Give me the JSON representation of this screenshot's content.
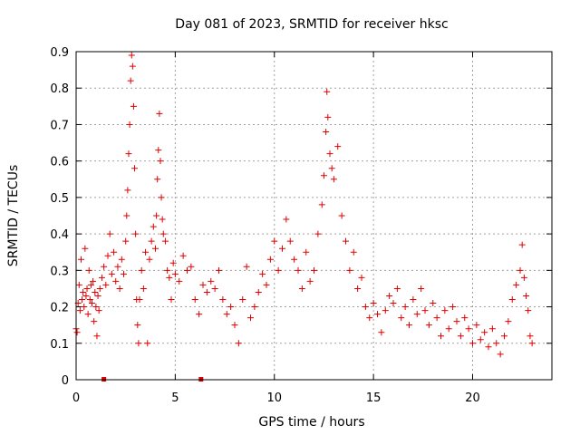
{
  "chart_data": {
    "type": "scatter",
    "title": "Day 081 of 2023, SRMTID for receiver hksc",
    "xlabel": "GPS time / hours",
    "ylabel": "SRMTID / TECUs",
    "xlim": [
      0,
      24.0
    ],
    "ylim": [
      0,
      0.9
    ],
    "x_ticks": [
      0,
      5,
      10,
      15,
      20
    ],
    "x_tick_labels": [
      "0",
      "5",
      "10",
      "15",
      "20"
    ],
    "y_ticks": [
      0,
      0.1,
      0.2,
      0.3,
      0.4,
      0.5,
      0.6,
      0.7,
      0.8,
      0.9
    ],
    "y_tick_labels": [
      "0",
      "0.1",
      "0.2",
      "0.3",
      "0.4",
      "0.5",
      "0.6",
      "0.7",
      "0.8",
      "0.9"
    ],
    "grid": true,
    "marker": "+",
    "color": "#e00000",
    "series": [
      {
        "name": "SRMTID",
        "points": [
          [
            0.0,
            0.14
          ],
          [
            0.05,
            0.13
          ],
          [
            0.1,
            0.21
          ],
          [
            0.15,
            0.26
          ],
          [
            0.2,
            0.19
          ],
          [
            0.25,
            0.33
          ],
          [
            0.3,
            0.22
          ],
          [
            0.35,
            0.24
          ],
          [
            0.4,
            0.2
          ],
          [
            0.45,
            0.36
          ],
          [
            0.5,
            0.23
          ],
          [
            0.55,
            0.25
          ],
          [
            0.6,
            0.18
          ],
          [
            0.65,
            0.3
          ],
          [
            0.7,
            0.22
          ],
          [
            0.75,
            0.26
          ],
          [
            0.8,
            0.21
          ],
          [
            0.85,
            0.27
          ],
          [
            0.9,
            0.16
          ],
          [
            0.95,
            0.24
          ],
          [
            1.0,
            0.2
          ],
          [
            1.05,
            0.12
          ],
          [
            1.1,
            0.23
          ],
          [
            1.15,
            0.19
          ],
          [
            1.2,
            0.25
          ],
          [
            1.3,
            0.28
          ],
          [
            1.4,
            0.31
          ],
          [
            1.5,
            0.26
          ],
          [
            1.6,
            0.34
          ],
          [
            1.7,
            0.4
          ],
          [
            1.8,
            0.29
          ],
          [
            1.9,
            0.35
          ],
          [
            2.0,
            0.27
          ],
          [
            2.1,
            0.31
          ],
          [
            2.2,
            0.25
          ],
          [
            2.3,
            0.33
          ],
          [
            2.4,
            0.29
          ],
          [
            2.5,
            0.38
          ],
          [
            2.55,
            0.45
          ],
          [
            2.6,
            0.52
          ],
          [
            2.65,
            0.62
          ],
          [
            2.7,
            0.7
          ],
          [
            2.75,
            0.82
          ],
          [
            2.8,
            0.89
          ],
          [
            2.85,
            0.86
          ],
          [
            2.9,
            0.75
          ],
          [
            2.95,
            0.58
          ],
          [
            3.0,
            0.4
          ],
          [
            3.05,
            0.22
          ],
          [
            3.1,
            0.15
          ],
          [
            3.15,
            0.1
          ],
          [
            3.2,
            0.22
          ],
          [
            3.3,
            0.3
          ],
          [
            3.4,
            0.25
          ],
          [
            3.5,
            0.35
          ],
          [
            3.6,
            0.1
          ],
          [
            3.7,
            0.33
          ],
          [
            3.8,
            0.38
          ],
          [
            3.9,
            0.42
          ],
          [
            4.0,
            0.36
          ],
          [
            4.05,
            0.45
          ],
          [
            4.1,
            0.55
          ],
          [
            4.15,
            0.63
          ],
          [
            4.2,
            0.73
          ],
          [
            4.25,
            0.6
          ],
          [
            4.3,
            0.5
          ],
          [
            4.35,
            0.44
          ],
          [
            4.4,
            0.4
          ],
          [
            4.5,
            0.38
          ],
          [
            4.6,
            0.3
          ],
          [
            4.7,
            0.28
          ],
          [
            4.8,
            0.22
          ],
          [
            4.9,
            0.32
          ],
          [
            5.0,
            0.29
          ],
          [
            5.2,
            0.27
          ],
          [
            5.4,
            0.34
          ],
          [
            5.6,
            0.3
          ],
          [
            5.8,
            0.31
          ],
          [
            6.0,
            0.22
          ],
          [
            6.2,
            0.18
          ],
          [
            6.4,
            0.26
          ],
          [
            6.6,
            0.24
          ],
          [
            6.8,
            0.27
          ],
          [
            7.0,
            0.25
          ],
          [
            7.2,
            0.3
          ],
          [
            7.4,
            0.22
          ],
          [
            7.6,
            0.18
          ],
          [
            7.8,
            0.2
          ],
          [
            8.0,
            0.15
          ],
          [
            8.2,
            0.1
          ],
          [
            8.4,
            0.22
          ],
          [
            8.6,
            0.31
          ],
          [
            8.8,
            0.17
          ],
          [
            9.0,
            0.2
          ],
          [
            9.2,
            0.24
          ],
          [
            9.4,
            0.29
          ],
          [
            9.6,
            0.26
          ],
          [
            9.8,
            0.33
          ],
          [
            10.0,
            0.38
          ],
          [
            10.2,
            0.3
          ],
          [
            10.4,
            0.36
          ],
          [
            10.6,
            0.44
          ],
          [
            10.8,
            0.38
          ],
          [
            11.0,
            0.33
          ],
          [
            11.2,
            0.3
          ],
          [
            11.4,
            0.25
          ],
          [
            11.6,
            0.35
          ],
          [
            11.8,
            0.27
          ],
          [
            12.0,
            0.3
          ],
          [
            12.2,
            0.4
          ],
          [
            12.4,
            0.48
          ],
          [
            12.5,
            0.56
          ],
          [
            12.6,
            0.68
          ],
          [
            12.65,
            0.79
          ],
          [
            12.7,
            0.72
          ],
          [
            12.8,
            0.62
          ],
          [
            12.9,
            0.58
          ],
          [
            13.0,
            0.55
          ],
          [
            13.2,
            0.64
          ],
          [
            13.4,
            0.45
          ],
          [
            13.6,
            0.38
          ],
          [
            13.8,
            0.3
          ],
          [
            14.0,
            0.35
          ],
          [
            14.2,
            0.25
          ],
          [
            14.4,
            0.28
          ],
          [
            14.6,
            0.2
          ],
          [
            14.8,
            0.17
          ],
          [
            15.0,
            0.21
          ],
          [
            15.2,
            0.18
          ],
          [
            15.4,
            0.13
          ],
          [
            15.6,
            0.19
          ],
          [
            15.8,
            0.23
          ],
          [
            16.0,
            0.21
          ],
          [
            16.2,
            0.25
          ],
          [
            16.4,
            0.17
          ],
          [
            16.6,
            0.2
          ],
          [
            16.8,
            0.15
          ],
          [
            17.0,
            0.22
          ],
          [
            17.2,
            0.18
          ],
          [
            17.4,
            0.25
          ],
          [
            17.6,
            0.19
          ],
          [
            17.8,
            0.15
          ],
          [
            18.0,
            0.21
          ],
          [
            18.2,
            0.17
          ],
          [
            18.4,
            0.12
          ],
          [
            18.6,
            0.19
          ],
          [
            18.8,
            0.14
          ],
          [
            19.0,
            0.2
          ],
          [
            19.2,
            0.16
          ],
          [
            19.4,
            0.12
          ],
          [
            19.6,
            0.17
          ],
          [
            19.8,
            0.14
          ],
          [
            20.0,
            0.1
          ],
          [
            20.2,
            0.15
          ],
          [
            20.4,
            0.11
          ],
          [
            20.6,
            0.13
          ],
          [
            20.8,
            0.09
          ],
          [
            21.0,
            0.14
          ],
          [
            21.2,
            0.1
          ],
          [
            21.4,
            0.07
          ],
          [
            21.6,
            0.12
          ],
          [
            21.8,
            0.16
          ],
          [
            22.0,
            0.22
          ],
          [
            22.2,
            0.26
          ],
          [
            22.4,
            0.3
          ],
          [
            22.5,
            0.37
          ],
          [
            22.6,
            0.28
          ],
          [
            22.7,
            0.23
          ],
          [
            22.8,
            0.19
          ],
          [
            22.9,
            0.12
          ],
          [
            23.0,
            0.1
          ]
        ]
      }
    ],
    "baseline_markers": [
      [
        1.4,
        0.0
      ],
      [
        6.3,
        0.0
      ]
    ]
  }
}
